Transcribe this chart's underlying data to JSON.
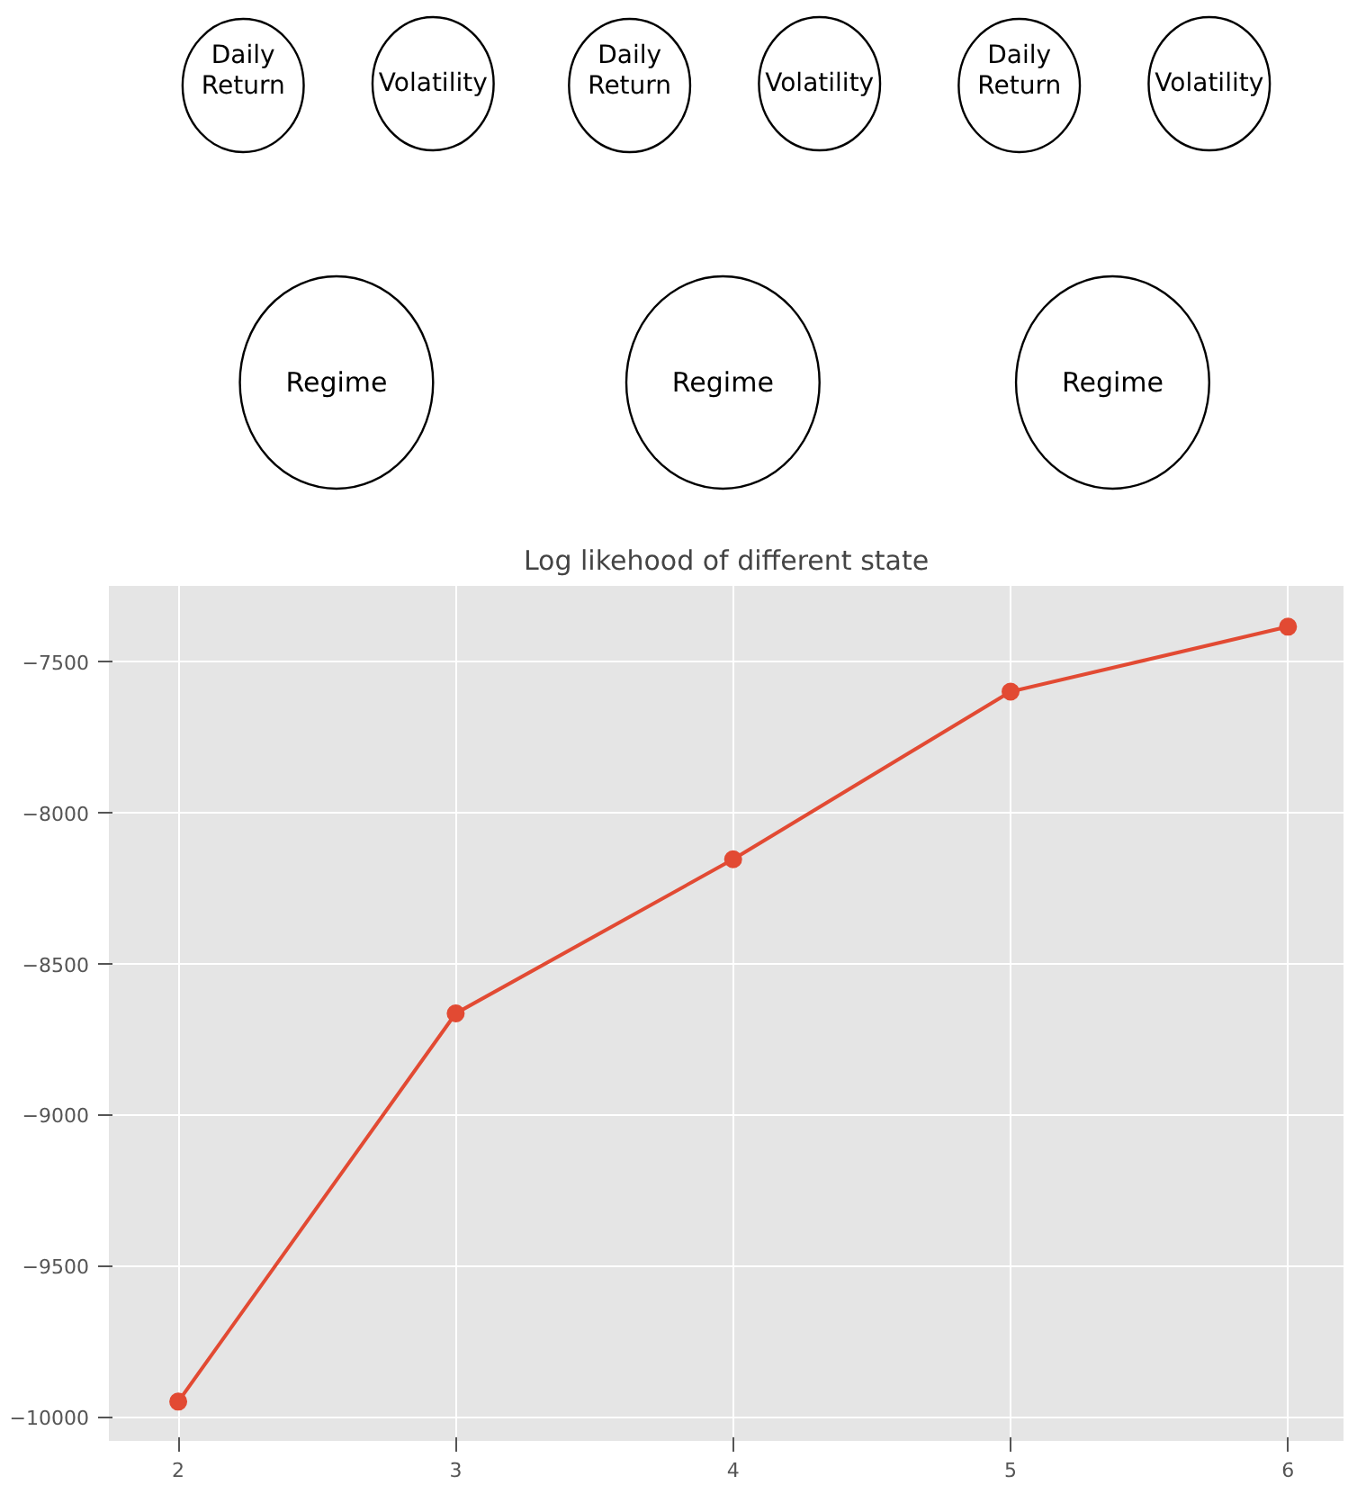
{
  "chart_data": [
    {
      "type": "other",
      "annotations": [
        "Daily\nReturn",
        "Volatility",
        "Regime",
        "Daily\nReturn",
        "Volatility",
        "Regime",
        "Daily\nReturn",
        "Volatility",
        "Regime"
      ]
    },
    {
      "type": "line",
      "title": "Log likehood of different state",
      "x": [
        2,
        3,
        4,
        5,
        6
      ],
      "series": [
        {
          "color": "#e24a33",
          "values": [
            -9950,
            -8665,
            -8155,
            -7600,
            -7385
          ]
        }
      ],
      "xlim": [
        1.75,
        6.2
      ],
      "ylim": [
        -10080,
        -7250
      ],
      "xticks": [
        2,
        3,
        4,
        5,
        6
      ],
      "yticks": [
        -10000,
        -9500,
        -9000,
        -8500,
        -8000,
        -7500
      ],
      "grid": true,
      "marker": "circle",
      "line_style": "solid"
    }
  ]
}
